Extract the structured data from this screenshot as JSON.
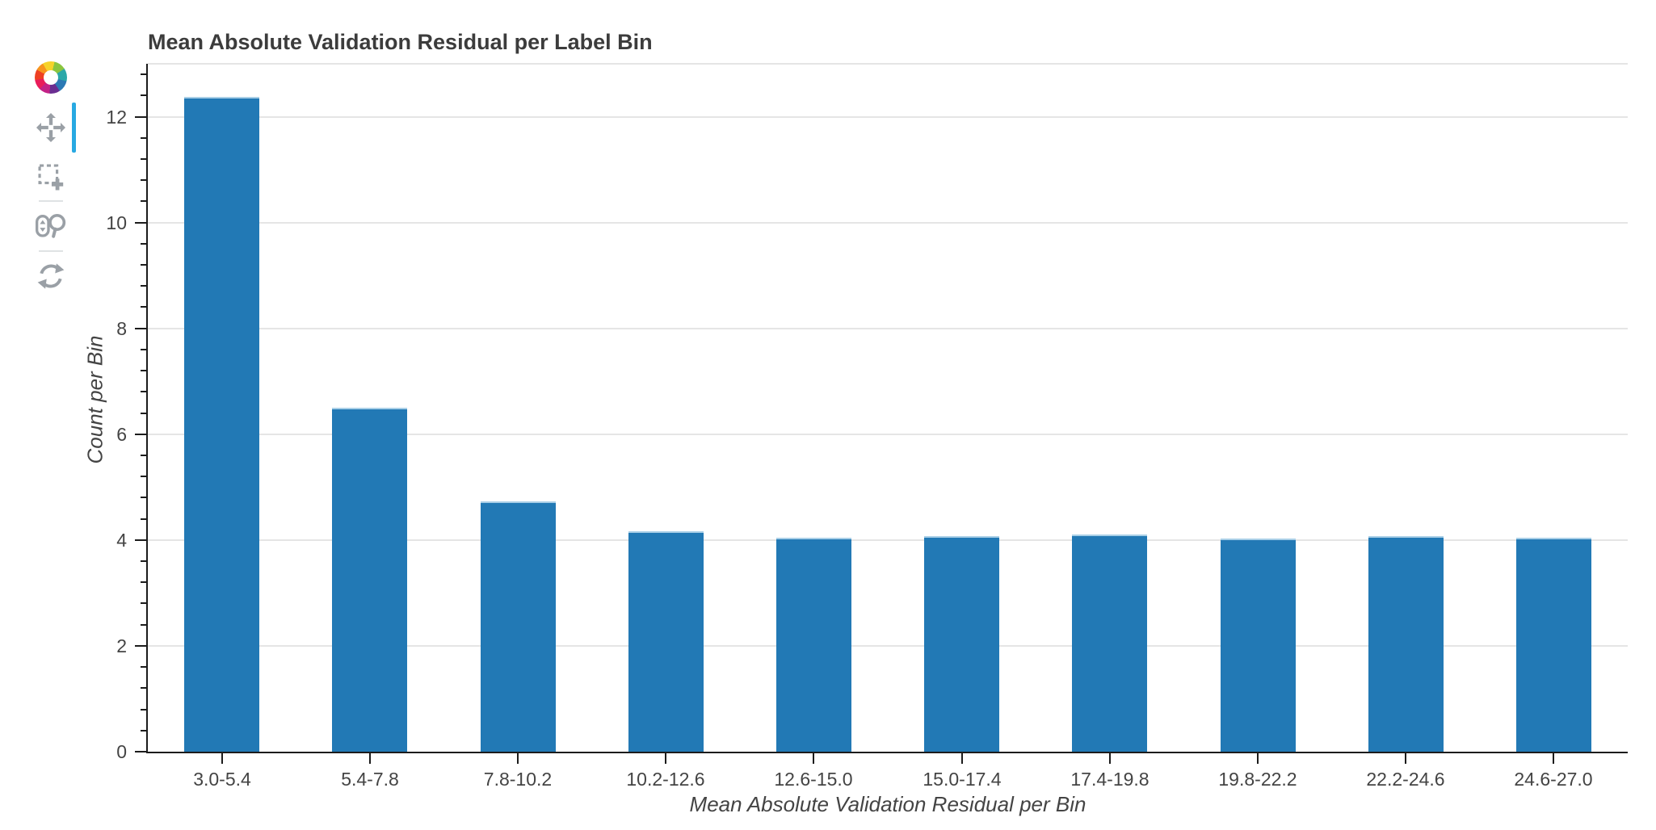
{
  "page": {
    "background": "#ffffff"
  },
  "toolbar": {
    "logo_icon": "bokeh-logo",
    "active_tool": "pan",
    "active_indicator_color": "#28a9e2",
    "icon_color": "#9aa0a6",
    "tools": [
      {
        "icon": "pan-icon",
        "active": true
      },
      {
        "icon": "box-zoom-icon",
        "active": false
      },
      {
        "icon": "wheel-zoom-icon",
        "active": false
      },
      {
        "icon": "reset-icon",
        "active": false
      }
    ]
  },
  "chart_data": {
    "type": "bar",
    "title": "Mean Absolute Validation Residual per Label Bin",
    "xlabel": "Mean Absolute Validation Residual per Bin",
    "ylabel": "Count per Bin",
    "categories": [
      "3.0-5.4",
      "5.4-7.8",
      "7.8-10.2",
      "10.2-12.6",
      "12.6-15.0",
      "15.0-17.4",
      "17.4-19.8",
      "19.8-22.2",
      "22.2-24.6",
      "24.6-27.0"
    ],
    "values": [
      12.37,
      6.5,
      4.73,
      4.16,
      4.05,
      4.08,
      4.1,
      4.03,
      4.07,
      4.04
    ],
    "ylim": [
      0,
      13
    ],
    "yticks": [
      0,
      2,
      4,
      6,
      8,
      10,
      12
    ],
    "y_minor_tick_step": 0.4,
    "grid": "horizontal",
    "legend": "none",
    "colors": {
      "bar_fill": "#2279b5",
      "bar_top_edge": "#a9cfe7",
      "grid_line": "#e5e5e5",
      "axis_line": "#1c1c1c",
      "tick_label": "#444444",
      "axis_label": "#444444",
      "title": "#3c3c3c"
    }
  }
}
